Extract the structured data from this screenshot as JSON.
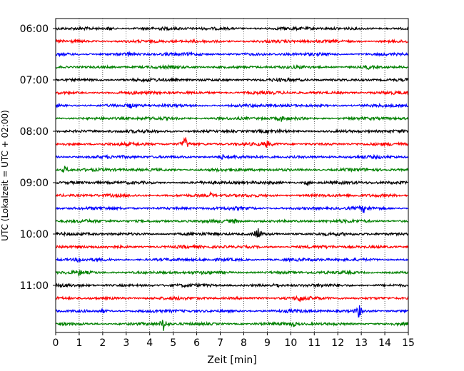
{
  "chart_data": {
    "type": "line",
    "title": "",
    "xlabel": "Zeit  [min]",
    "ylabel": "UTC (Lokalzeit = UTC + 02:00)",
    "xlim": [
      0,
      15
    ],
    "x_ticks": [
      "0",
      "1",
      "2",
      "3",
      "4",
      "5",
      "6",
      "7",
      "8",
      "9",
      "10",
      "11",
      "12",
      "13",
      "14",
      "15"
    ],
    "y_ticks": [
      "06:00",
      "07:00",
      "08:00",
      "09:00",
      "10:00",
      "11:00"
    ],
    "grid": "vertical-dotted",
    "trace_interval_min": 15,
    "trace_colors": [
      "#000000",
      "#ff0000",
      "#0000ff",
      "#008000"
    ],
    "traces": [
      {
        "start": "06:00",
        "events": [
          [
            2.3,
            3
          ]
        ]
      },
      {
        "start": "06:15",
        "events": []
      },
      {
        "start": "06:30",
        "events": [
          [
            3.1,
            3
          ]
        ]
      },
      {
        "start": "06:45",
        "events": [
          [
            13.3,
            2
          ]
        ]
      },
      {
        "start": "07:00",
        "events": []
      },
      {
        "start": "07:15",
        "events": []
      },
      {
        "start": "07:30",
        "events": [
          [
            3.2,
            3
          ]
        ]
      },
      {
        "start": "07:45",
        "events": [
          [
            9.6,
            3
          ]
        ]
      },
      {
        "start": "08:00",
        "events": []
      },
      {
        "start": "08:15",
        "events": [
          [
            5.5,
            12
          ],
          [
            9.0,
            4
          ]
        ]
      },
      {
        "start": "08:30",
        "events": [
          [
            7.1,
            3
          ]
        ]
      },
      {
        "start": "08:45",
        "events": [
          [
            0.4,
            6
          ]
        ]
      },
      {
        "start": "09:00",
        "events": [
          [
            10.7,
            4
          ]
        ]
      },
      {
        "start": "09:15",
        "events": [
          [
            6.6,
            3
          ]
        ]
      },
      {
        "start": "09:30",
        "events": [
          [
            13.1,
            5
          ]
        ]
      },
      {
        "start": "09:45",
        "events": [
          [
            7.6,
            3
          ]
        ]
      },
      {
        "start": "10:00",
        "events": [
          [
            8.6,
            10
          ]
        ]
      },
      {
        "start": "10:15",
        "events": []
      },
      {
        "start": "10:30",
        "events": [
          [
            1.0,
            4
          ]
        ]
      },
      {
        "start": "10:45",
        "events": [
          [
            1.0,
            3
          ]
        ]
      },
      {
        "start": "11:00",
        "events": [
          [
            9.4,
            3
          ]
        ]
      },
      {
        "start": "11:15",
        "events": [
          [
            10.4,
            5
          ]
        ]
      },
      {
        "start": "11:30",
        "events": [
          [
            12.9,
            10
          ],
          [
            2.0,
            3
          ]
        ]
      },
      {
        "start": "11:45",
        "events": [
          [
            4.6,
            11
          ],
          [
            10.1,
            3
          ]
        ]
      }
    ]
  }
}
